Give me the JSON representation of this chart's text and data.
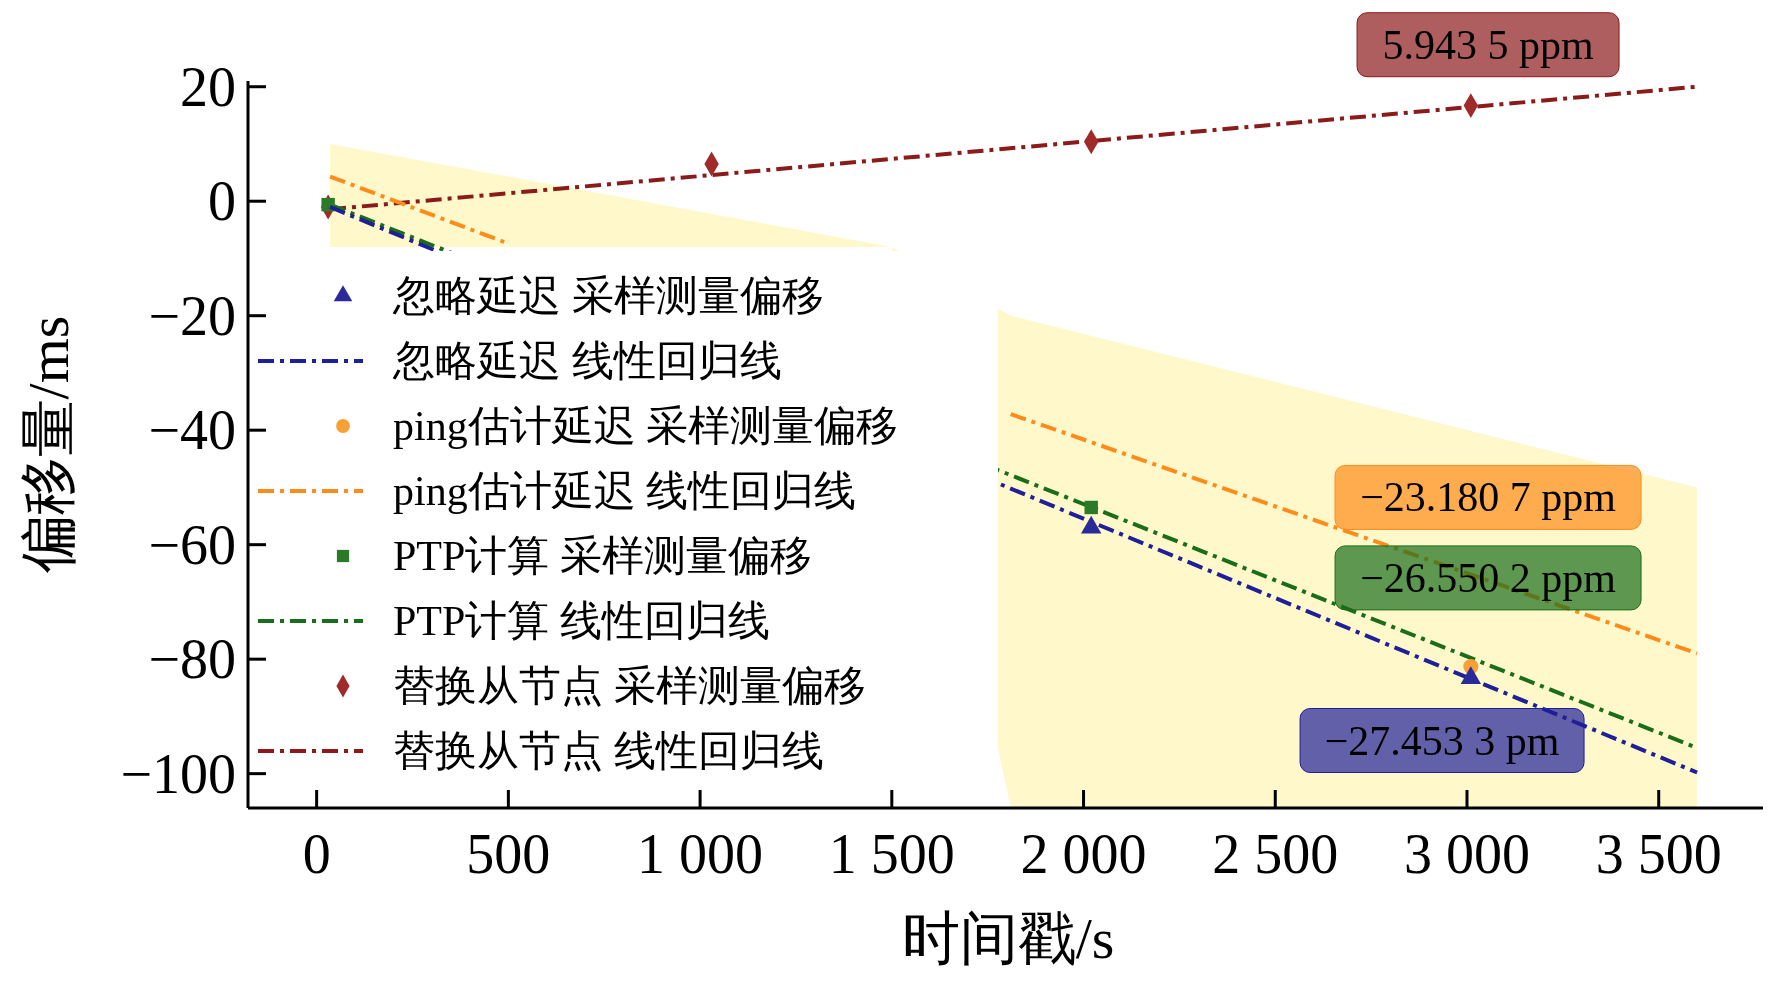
{
  "chart_data": {
    "type": "line",
    "xlabel": "时间戳/s",
    "ylabel": "偏移量/ms",
    "xlim": [
      -179,
      3785
    ],
    "ylim": [
      -106,
      21
    ],
    "xticks": [
      0,
      {
        "value": 500,
        "label": "500"
      },
      {
        "value": 1000,
        "label": "1 000"
      },
      {
        "value": 1500,
        "label": "1 500"
      },
      {
        "value": 2000,
        "label": "2 000"
      },
      {
        "value": 2500,
        "label": "2 500"
      },
      {
        "value": 3000,
        "label": "3 000"
      },
      {
        "value": 3500,
        "label": "3 500"
      }
    ],
    "yticks": [
      -100,
      -80,
      -60,
      -40,
      -20,
      0,
      20
    ],
    "grid": false,
    "legend": "left",
    "series": [
      {
        "name": "忽略延迟 采样测量偏移",
        "type": "scatter",
        "marker": "triangle",
        "color": "#2a2a9a",
        "x": [
          2020,
          3010
        ],
        "values": [
          -57,
          -83.3
        ]
      },
      {
        "name": "忽略延迟 线性回归线",
        "line_style": "dashed",
        "marker": "none",
        "color": "#1f1f9a",
        "x": [
          35,
          3600
        ],
        "values": [
          -1,
          -99.8
        ]
      },
      {
        "name": "ping估计延迟 采样测量偏移",
        "type": "scatter",
        "marker": "circle",
        "color": "#f7a035",
        "x": [
          3010
        ],
        "values": [
          -81.3
        ]
      },
      {
        "name": "ping估计延迟 线性回归线",
        "line_style": "dashed",
        "marker": "none",
        "color": "#ff8c1a",
        "x": [
          35,
          500,
          1500,
          1810,
          3600
        ],
        "values": [
          4.3,
          -7.4,
          null,
          -37.2,
          -79
        ],
        "lower": [
          -8,
          -8,
          -8,
          -106,
          -106
        ],
        "upper": [
          10,
          4.3,
          -8,
          -20,
          -50
        ]
      },
      {
        "name": "PTP计算 采样测量偏移",
        "type": "scatter",
        "marker": "square",
        "color": "#2a7a2a",
        "x": [
          30,
          2020
        ],
        "values": [
          -0.6,
          -53.5
        ]
      },
      {
        "name": "PTP计算 线性回归线",
        "line_style": "dashed",
        "marker": "none",
        "color": "#1a6e1a",
        "x": [
          35,
          3600
        ],
        "values": [
          -0.6,
          -95.5
        ]
      },
      {
        "name": "替换从节点 采样测量偏移",
        "type": "scatter",
        "marker": "diamond",
        "color": "#a02a2a",
        "x": [
          30,
          1030,
          2020,
          3010
        ],
        "values": [
          -1,
          6.5,
          10.4,
          16.7
        ]
      },
      {
        "name": "替换从节点 线性回归线",
        "line_style": "dashed",
        "marker": "none",
        "color": "#8b1a1a",
        "x": [
          35,
          3600
        ],
        "values": [
          -1.4,
          20
        ]
      }
    ],
    "annotations": [
      "−27.453 3 pm",
      "−23.180 7 ppm",
      "−26.550 2 ppm",
      "5.943 5 ppm"
    ]
  }
}
